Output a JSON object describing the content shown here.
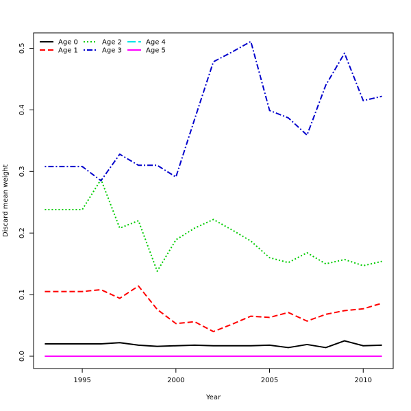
{
  "chart_data": {
    "type": "line",
    "title": "",
    "xlabel": "Year",
    "ylabel": "Discard mean weight",
    "xlim": [
      1992.4,
      2011.6
    ],
    "ylim": [
      -0.02,
      0.525
    ],
    "x_ticks": [
      1995,
      2000,
      2005,
      2010
    ],
    "y_ticks": [
      0.0,
      0.1,
      0.2,
      0.3,
      0.4,
      0.5
    ],
    "y_tick_labels": [
      "0.0",
      "0.1",
      "0.2",
      "0.3",
      "0.4",
      "0.5"
    ],
    "grid": false,
    "legend_position": "top-left",
    "x": [
      1993,
      1994,
      1995,
      1996,
      1997,
      1998,
      1999,
      2000,
      2001,
      2002,
      2003,
      2004,
      2005,
      2006,
      2007,
      2008,
      2009,
      2010,
      2011
    ],
    "series": [
      {
        "name": "Age 0",
        "color": "#000000",
        "dash": "solid",
        "values": [
          0.02,
          0.02,
          0.02,
          0.02,
          0.022,
          0.018,
          0.016,
          0.017,
          0.018,
          0.017,
          0.017,
          0.017,
          0.018,
          0.014,
          0.019,
          0.014,
          0.025,
          0.017,
          0.018
        ]
      },
      {
        "name": "Age 1",
        "color": "#ff0000",
        "dash": "dashed",
        "values": [
          0.105,
          0.105,
          0.105,
          0.108,
          0.094,
          0.114,
          0.076,
          0.053,
          0.056,
          0.04,
          0.052,
          0.065,
          0.063,
          0.071,
          0.057,
          0.068,
          0.074,
          0.077,
          0.086
        ]
      },
      {
        "name": "Age 2",
        "color": "#00cc00",
        "dash": "dotted",
        "values": [
          0.238,
          0.238,
          0.238,
          0.287,
          0.208,
          0.22,
          0.138,
          0.189,
          0.208,
          0.222,
          0.205,
          0.187,
          0.16,
          0.152,
          0.168,
          0.15,
          0.157,
          0.147,
          0.154
        ]
      },
      {
        "name": "Age 3",
        "color": "#0000cc",
        "dash": "dotdash",
        "values": [
          0.308,
          0.308,
          0.308,
          0.285,
          0.328,
          0.31,
          0.31,
          0.291,
          0.385,
          0.478,
          0.494,
          0.511,
          0.399,
          0.387,
          0.359,
          0.44,
          0.492,
          0.415,
          0.422
        ]
      },
      {
        "name": "Age 4",
        "color": "#00e5e5",
        "dash": "longdash",
        "values": [
          0,
          0,
          0,
          0,
          0,
          0,
          0,
          0,
          0,
          0,
          0,
          0,
          0,
          0,
          0,
          0,
          0,
          0,
          0
        ]
      },
      {
        "name": "Age 5",
        "color": "#ff00ff",
        "dash": "solid",
        "values": [
          0,
          0,
          0,
          0,
          0,
          0,
          0,
          0,
          0,
          0,
          0,
          0,
          0,
          0,
          0,
          0,
          0,
          0,
          0
        ]
      }
    ]
  }
}
